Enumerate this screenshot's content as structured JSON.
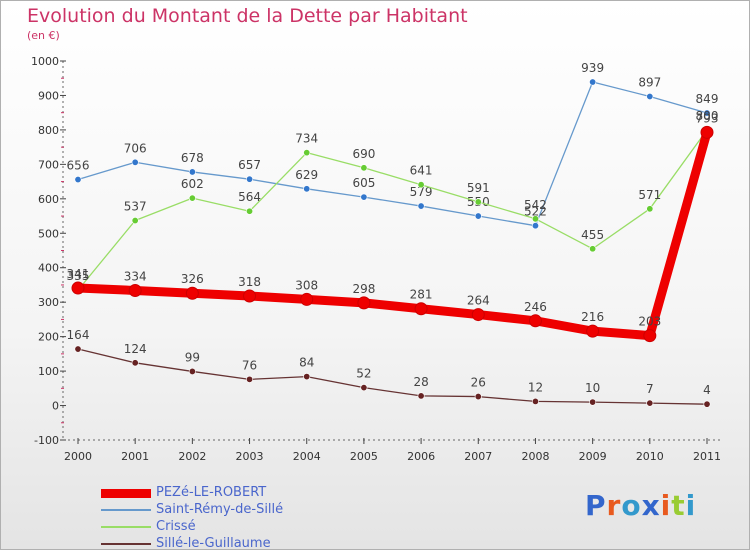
{
  "header": {
    "title": "Evolution du Montant de la Dette par Habitant",
    "subtitle": "(en €)"
  },
  "brand": {
    "text": "Proxiti",
    "letter_colors": [
      "#3366cc",
      "#e85a1f",
      "#3399cc",
      "#3366cc",
      "#e85a1f",
      "#99cc33",
      "#3399cc"
    ]
  },
  "chart_data": {
    "type": "line",
    "title": "Evolution du Montant de la Dette par Habitant",
    "ylabel": "(en €)",
    "categories": [
      "2000",
      "2001",
      "2002",
      "2003",
      "2004",
      "2005",
      "2006",
      "2007",
      "2008",
      "2009",
      "2010",
      "2011"
    ],
    "ylim": [
      -100,
      1000
    ],
    "yticks": [
      -100,
      0,
      100,
      200,
      300,
      400,
      500,
      600,
      700,
      800,
      900,
      1000
    ],
    "grid": false,
    "legend_position": "bottom-left",
    "series": [
      {
        "name": "Saint-Rémy-de-Sillé",
        "color": "#6699cc",
        "marker": "#3377cc",
        "values": [
          656,
          706,
          678,
          657,
          629,
          605,
          579,
          550,
          522,
          939,
          897,
          849
        ]
      },
      {
        "name": "Crissé",
        "color": "#99dd66",
        "marker": "#66cc33",
        "values": [
          335,
          537,
          602,
          564,
          734,
          690,
          641,
          591,
          542,
          455,
          571,
          800
        ]
      },
      {
        "name": "Sillé-le-Guillaume",
        "color": "#663333",
        "marker": "#662222",
        "values": [
          164,
          124,
          99,
          76,
          84,
          52,
          28,
          26,
          12,
          10,
          7,
          4
        ]
      },
      {
        "name": "PEZé-LE-ROBERT",
        "color": "#ee0000",
        "marker": "#ee0000",
        "thick": true,
        "values": [
          341,
          334,
          326,
          318,
          308,
          298,
          281,
          264,
          246,
          216,
          203,
          793
        ]
      }
    ],
    "legend_order": [
      "PEZé-LE-ROBERT",
      "Saint-Rémy-de-Sillé",
      "Crissé",
      "Sillé-le-Guillaume"
    ]
  }
}
